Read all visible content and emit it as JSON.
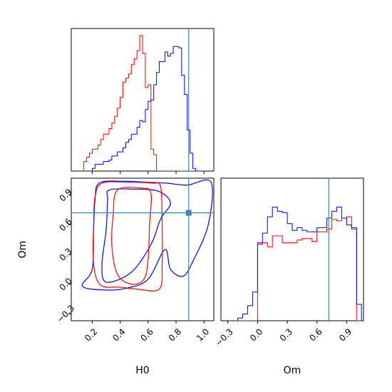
{
  "chart_data": [
    {
      "type": "histogram",
      "panel": "H0 marginal",
      "xlim": [
        0.05,
        1.07
      ],
      "truth": 0.89,
      "bins": [
        0.1,
        0.12,
        0.14,
        0.16,
        0.18,
        0.2,
        0.22,
        0.24,
        0.26,
        0.28,
        0.3,
        0.32,
        0.34,
        0.36,
        0.38,
        0.4,
        0.42,
        0.44,
        0.46,
        0.48,
        0.5,
        0.52,
        0.54,
        0.56,
        0.58,
        0.6,
        0.62,
        0.64,
        0.66,
        0.68,
        0.7,
        0.72,
        0.74,
        0.76,
        0.78,
        0.8,
        0.82,
        0.84,
        0.86,
        0.88,
        0.9,
        0.92,
        0.94,
        0.96,
        0.98,
        1.0,
        1.02
      ],
      "series": [
        {
          "color": "#ff0000",
          "heights": [
            0,
            0,
            0.07,
            0.1,
            0.13,
            0.16,
            0.16,
            0.19,
            0.23,
            0.27,
            0.27,
            0.31,
            0.35,
            0.4,
            0.46,
            0.54,
            0.65,
            0.68,
            0.71,
            0.78,
            0.82,
            0.88,
            0.99,
            0.86,
            0.61,
            0.63,
            0.16,
            0.12,
            0.0,
            0,
            0,
            0,
            0,
            0,
            0,
            0,
            0,
            0,
            0,
            0,
            0,
            0,
            0,
            0,
            0,
            0
          ]
        },
        {
          "color": "#0000ff",
          "heights": [
            0,
            0,
            0,
            0,
            0,
            0.02,
            0.05,
            0.05,
            0.05,
            0.07,
            0.07,
            0.08,
            0.11,
            0.11,
            0.14,
            0.14,
            0.17,
            0.21,
            0.23,
            0.27,
            0.27,
            0.32,
            0.37,
            0.36,
            0.45,
            0.51,
            0.52,
            0.63,
            0.72,
            0.8,
            0.8,
            0.87,
            0.84,
            0.86,
            0.91,
            0.91,
            0.9,
            0.7,
            0.56,
            0.3,
            0.13,
            0.02,
            0,
            0,
            0,
            0
          ]
        }
      ]
    },
    {
      "type": "contour",
      "panel": "H0 vs Om",
      "xlabel": "H0",
      "ylabel": "Om",
      "xlim": [
        0.05,
        1.07
      ],
      "ylim": [
        -0.37,
        1.07
      ],
      "xticks": [
        "0.2",
        "0.4",
        "0.6",
        "0.8",
        "1.0"
      ],
      "yticks": [
        "−0.3",
        "0.0",
        "0.3",
        "0.6",
        "0.9"
      ],
      "truth": [
        0.89,
        0.72
      ],
      "series": [
        {
          "color": "#0000ff",
          "contours": [
            [
              [
                0.25,
                1.02
              ],
              [
                0.42,
                1.04
              ],
              [
                0.58,
                1.03
              ],
              [
                0.73,
                1.02
              ],
              [
                0.88,
                1.0
              ],
              [
                1.05,
                1.03
              ],
              [
                1.03,
                0.6
              ],
              [
                0.92,
                0.23
              ],
              [
                0.85,
                0.08
              ],
              [
                0.76,
                0.15
              ],
              [
                0.72,
                0.35
              ],
              [
                0.6,
                0.05
              ],
              [
                0.45,
                -0.04
              ],
              [
                0.3,
                -0.06
              ],
              [
                0.13,
                -0.02
              ],
              [
                0.2,
                0.15
              ],
              [
                0.21,
                0.55
              ],
              [
                0.22,
                0.85
              ]
            ],
            [
              [
                0.32,
                0.95
              ],
              [
                0.48,
                0.96
              ],
              [
                0.67,
                0.94
              ],
              [
                0.76,
                0.82
              ],
              [
                0.69,
                0.66
              ],
              [
                0.62,
                0.4
              ],
              [
                0.48,
                0.12
              ],
              [
                0.3,
                0.02
              ],
              [
                0.27,
                0.2
              ],
              [
                0.3,
                0.55
              ],
              [
                0.31,
                0.85
              ]
            ]
          ]
        },
        {
          "color": "#ff0000",
          "contours": [
            [
              [
                0.27,
                1.02
              ],
              [
                0.45,
                1.03
              ],
              [
                0.63,
                1.02
              ],
              [
                0.69,
                0.98
              ],
              [
                0.7,
                0.6
              ],
              [
                0.7,
                0.2
              ],
              [
                0.68,
                -0.05
              ],
              [
                0.52,
                -0.05
              ],
              [
                0.4,
                -0.03
              ],
              [
                0.26,
                -0.01
              ],
              [
                0.21,
                0.2
              ],
              [
                0.21,
                0.6
              ],
              [
                0.22,
                0.88
              ]
            ],
            [
              [
                0.38,
                0.95
              ],
              [
                0.55,
                0.97
              ],
              [
                0.62,
                0.92
              ],
              [
                0.61,
                0.6
              ],
              [
                0.6,
                0.25
              ],
              [
                0.57,
                0.05
              ],
              [
                0.48,
                0.0
              ],
              [
                0.38,
                0.1
              ],
              [
                0.34,
                0.4
              ],
              [
                0.35,
                0.7
              ]
            ]
          ]
        }
      ]
    },
    {
      "type": "histogram",
      "panel": "Om marginal",
      "xlabel": "Om",
      "xlim": [
        -0.37,
        1.07
      ],
      "xticks": [
        "−0.3",
        "0.0",
        "0.3",
        "0.6",
        "0.9"
      ],
      "truth": 0.72,
      "bins": [
        -0.3,
        -0.25,
        -0.2,
        -0.15,
        -0.1,
        -0.05,
        0.0,
        0.05,
        0.1,
        0.15,
        0.2,
        0.25,
        0.3,
        0.35,
        0.4,
        0.45,
        0.5,
        0.55,
        0.6,
        0.65,
        0.7,
        0.75,
        0.8,
        0.85,
        0.9,
        0.95,
        1.0,
        1.05
      ],
      "series": [
        {
          "color": "#ff0000",
          "heights": [
            0,
            0,
            0,
            0,
            0,
            0,
            0.56,
            0.57,
            0.54,
            0.62,
            0.62,
            0.57,
            0.57,
            0.57,
            0.59,
            0.6,
            0.6,
            0.58,
            0.65,
            0.65,
            0.67,
            0.74,
            0.73,
            0.75,
            0.76,
            0.67,
            0
          ]
        },
        {
          "color": "#0000ff",
          "heights": [
            0,
            0,
            0.02,
            0.05,
            0.11,
            0.21,
            0.57,
            0.64,
            0.76,
            0.83,
            0.8,
            0.79,
            0.71,
            0.66,
            0.68,
            0.66,
            0.65,
            0.65,
            0.68,
            0.68,
            0.75,
            0.8,
            0.83,
            0.75,
            0.7,
            0.68,
            0.12
          ]
        }
      ]
    }
  ]
}
